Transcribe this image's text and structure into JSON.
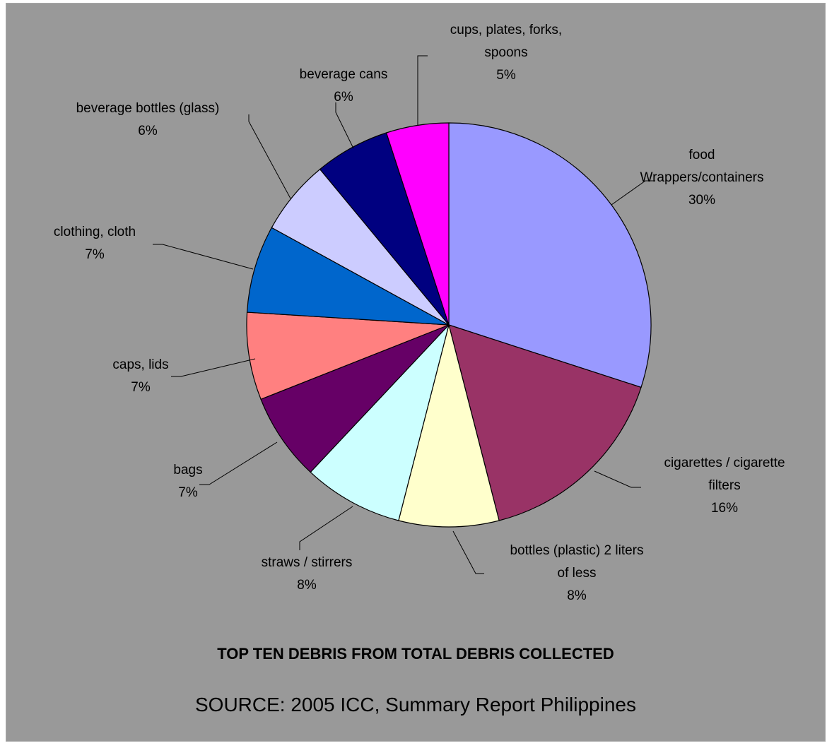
{
  "chart_data": {
    "type": "pie",
    "title": "TOP TEN DEBRIS FROM TOTAL DEBRIS COLLECTED",
    "subtitle": "SOURCE: 2005 ICC, Summary Report Philippines",
    "slices": [
      {
        "label": [
          "food",
          "Wrappers/containers"
        ],
        "value": 30,
        "pct_text": "30%",
        "color": "#9999FF"
      },
      {
        "label": [
          "cigarettes / cigarette",
          "filters"
        ],
        "value": 16,
        "pct_text": "16%",
        "color": "#993366"
      },
      {
        "label": [
          "bottles (plastic) 2 liters",
          "of less"
        ],
        "value": 8,
        "pct_text": "8%",
        "color": "#FFFFCC"
      },
      {
        "label": [
          "straws / stirrers"
        ],
        "value": 8,
        "pct_text": "8%",
        "color": "#CCFFFF"
      },
      {
        "label": [
          "bags"
        ],
        "value": 7,
        "pct_text": "7%",
        "color": "#660066"
      },
      {
        "label": [
          "caps, lids"
        ],
        "value": 7,
        "pct_text": "7%",
        "color": "#FF8080"
      },
      {
        "label": [
          "clothing, cloth"
        ],
        "value": 7,
        "pct_text": "7%",
        "color": "#0066CC"
      },
      {
        "label": [
          "beverage bottles (glass)"
        ],
        "value": 6,
        "pct_text": "6%",
        "color": "#CCCCFF"
      },
      {
        "label": [
          "beverage cans"
        ],
        "value": 6,
        "pct_text": "6%",
        "color": "#000080"
      },
      {
        "label": [
          "cups, plates, forks,",
          "spoons"
        ],
        "value": 5,
        "pct_text": "5%",
        "color": "#FF00FF"
      }
    ]
  }
}
